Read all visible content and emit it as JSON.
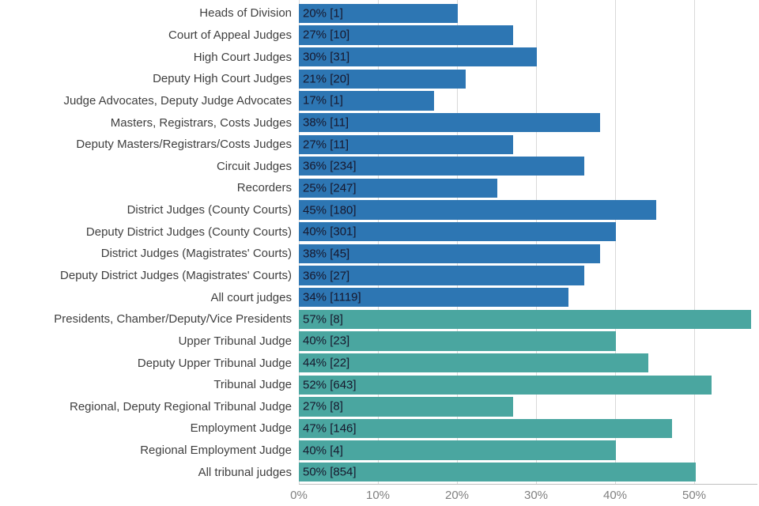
{
  "chart_data": {
    "type": "bar",
    "orientation": "horizontal",
    "title": "",
    "xlabel": "",
    "ylabel": "",
    "xmax": 58,
    "grid": true,
    "x_ticks": [
      {
        "value": 0,
        "label": "0%"
      },
      {
        "value": 10,
        "label": "10%"
      },
      {
        "value": 20,
        "label": "20%"
      },
      {
        "value": 30,
        "label": "30%"
      },
      {
        "value": 40,
        "label": "40%"
      },
      {
        "value": 50,
        "label": "50%"
      }
    ],
    "colors": {
      "court": "#2d76b3",
      "tribunal": "#4aa6a0"
    },
    "bars": [
      {
        "label": "Heads of Division",
        "value": 20,
        "count": 1,
        "display": "20% [1]",
        "group": "court"
      },
      {
        "label": "Court of Appeal Judges",
        "value": 27,
        "count": 10,
        "display": "27% [10]",
        "group": "court"
      },
      {
        "label": "High Court Judges",
        "value": 30,
        "count": 31,
        "display": "30% [31]",
        "group": "court"
      },
      {
        "label": "Deputy High Court Judges",
        "value": 21,
        "count": 20,
        "display": "21% [20]",
        "group": "court"
      },
      {
        "label": "Judge Advocates, Deputy Judge Advocates",
        "value": 17,
        "count": 1,
        "display": "17% [1]",
        "group": "court"
      },
      {
        "label": "Masters, Registrars, Costs Judges",
        "value": 38,
        "count": 11,
        "display": "38% [11]",
        "group": "court"
      },
      {
        "label": "Deputy Masters/Registrars/Costs Judges",
        "value": 27,
        "count": 11,
        "display": "27% [11]",
        "group": "court"
      },
      {
        "label": "Circuit Judges",
        "value": 36,
        "count": 234,
        "display": "36% [234]",
        "group": "court"
      },
      {
        "label": "Recorders",
        "value": 25,
        "count": 247,
        "display": "25% [247]",
        "group": "court"
      },
      {
        "label": "District Judges (County Courts)",
        "value": 45,
        "count": 180,
        "display": "45% [180]",
        "group": "court"
      },
      {
        "label": "Deputy District Judges (County Courts)",
        "value": 40,
        "count": 301,
        "display": "40% [301]",
        "group": "court"
      },
      {
        "label": "District Judges (Magistrates' Courts)",
        "value": 38,
        "count": 45,
        "display": "38% [45]",
        "group": "court"
      },
      {
        "label": "Deputy District Judges (Magistrates' Courts)",
        "value": 36,
        "count": 27,
        "display": "36% [27]",
        "group": "court"
      },
      {
        "label": "All court judges",
        "value": 34,
        "count": 1119,
        "display": "34% [1119]",
        "group": "court"
      },
      {
        "label": "Presidents, Chamber/Deputy/Vice Presidents",
        "value": 57,
        "count": 8,
        "display": "57% [8]",
        "group": "tribunal"
      },
      {
        "label": "Upper Tribunal Judge",
        "value": 40,
        "count": 23,
        "display": "40% [23]",
        "group": "tribunal"
      },
      {
        "label": "Deputy Upper Tribunal Judge",
        "value": 44,
        "count": 22,
        "display": "44% [22]",
        "group": "tribunal"
      },
      {
        "label": "Tribunal Judge",
        "value": 52,
        "count": 643,
        "display": "52% [643]",
        "group": "tribunal"
      },
      {
        "label": "Regional, Deputy Regional Tribunal Judge",
        "value": 27,
        "count": 8,
        "display": "27% [8]",
        "group": "tribunal"
      },
      {
        "label": "Employment Judge",
        "value": 47,
        "count": 146,
        "display": "47% [146]",
        "group": "tribunal"
      },
      {
        "label": "Regional Employment Judge",
        "value": 40,
        "count": 4,
        "display": "40% [4]",
        "group": "tribunal"
      },
      {
        "label": "All tribunal judges",
        "value": 50,
        "count": 854,
        "display": "50% [854]",
        "group": "tribunal"
      }
    ]
  }
}
